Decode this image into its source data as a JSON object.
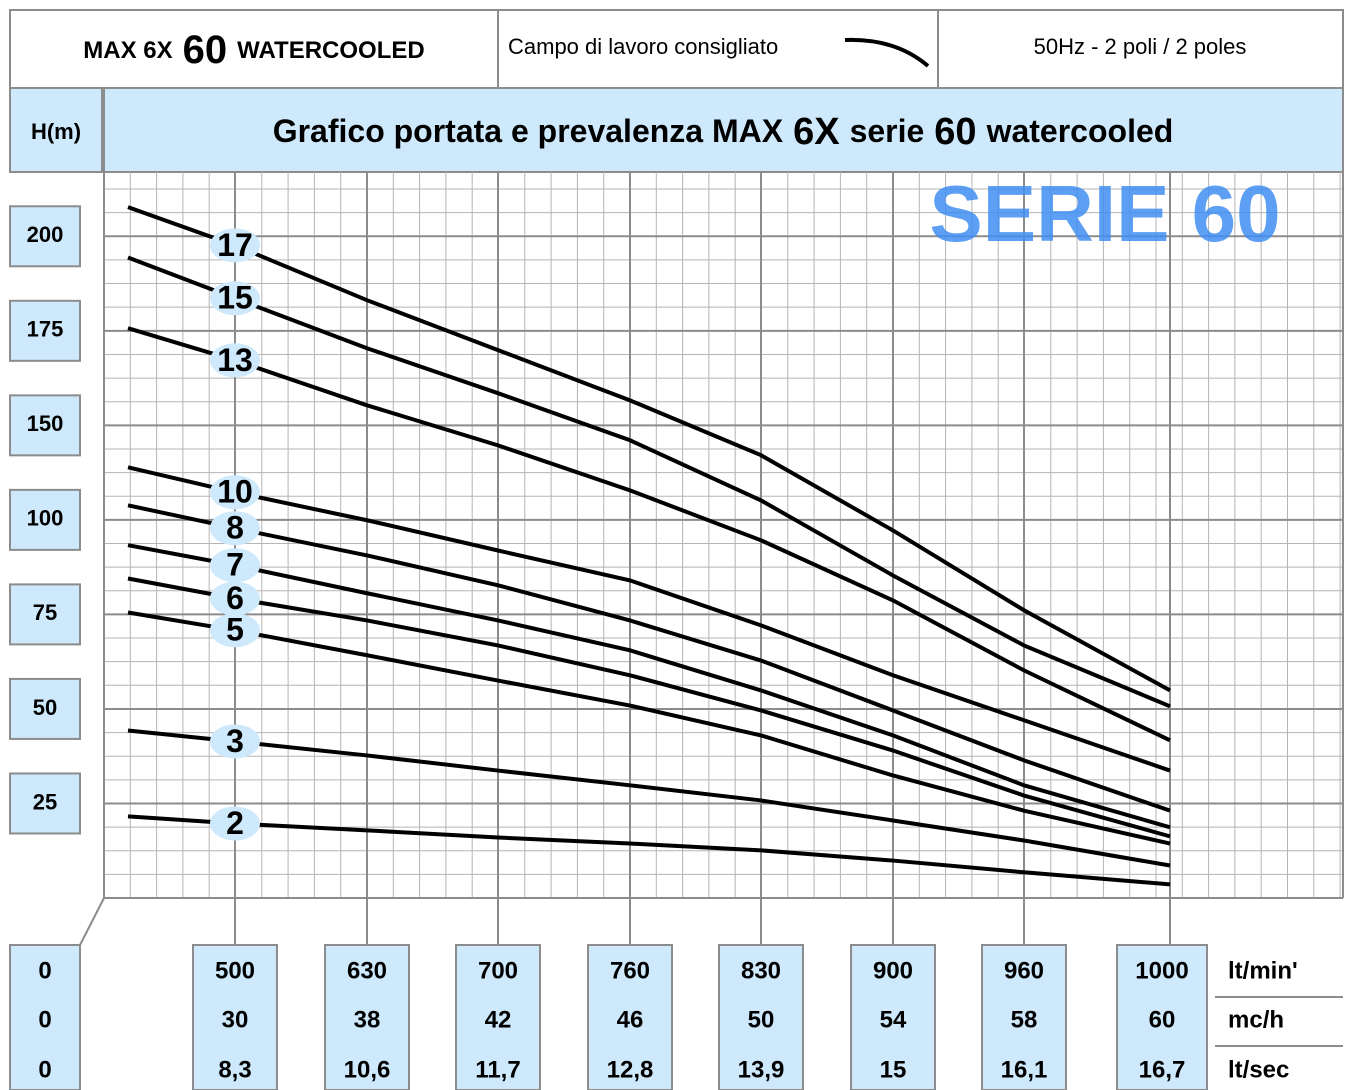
{
  "header": {
    "model": [
      "MAX 6X",
      "60",
      "WATERCOOLED"
    ],
    "legend": "Campo di lavoro consigliato",
    "frequency": "50Hz - 2 poli / 2 poles"
  },
  "chart_data": {
    "type": "line",
    "title": [
      "Grafico portata e prevalenza  MAX",
      "6X",
      "serie",
      "60",
      "watercooled"
    ],
    "y_label": "H(m)",
    "watermark": "SERIE 60",
    "x_label": "lt/min'",
    "categories": [
      "0",
      "500",
      "630",
      "700",
      "760",
      "830",
      "900",
      "960",
      "1000"
    ],
    "extra_x_rows": [
      {
        "label": "mc/h",
        "categories": [
          "0",
          "30",
          "38",
          "42",
          "46",
          "50",
          "54",
          "58",
          "60"
        ]
      },
      {
        "label": "lt/sec",
        "categories": [
          "0",
          "8,3",
          "10,6",
          "11,7",
          "12,8",
          "13,9",
          "15",
          "16,1",
          "16,7"
        ]
      }
    ],
    "ylim": [
      0,
      217
    ],
    "yticks": [
      25,
      50,
      75,
      100,
      150,
      175,
      200
    ],
    "grid": true,
    "series": [
      {
        "name": "17",
        "color": "#000000",
        "values": [
          207.7,
          197.6,
          183.1,
          169.9,
          156.6,
          134.2,
          97.2,
          76.1,
          54.9
        ]
      },
      {
        "name": "15",
        "color": "#000000",
        "values": [
          194.4,
          183.6,
          170.4,
          158.5,
          142.1,
          110.3,
          85.3,
          66.8,
          50.7
        ]
      },
      {
        "name": "13",
        "color": "#000000",
        "values": [
          175.7,
          167.2,
          155.3,
          139.4,
          115.6,
          94.6,
          78.7,
          60.2,
          41.7
        ]
      },
      {
        "name": "10",
        "color": "#000000",
        "values": [
          127.8,
          114.6,
          99.9,
          91.9,
          84.0,
          72.1,
          58.9,
          47.0,
          33.7
        ]
      },
      {
        "name": "8",
        "color": "#000000",
        "values": [
          107.7,
          97.8,
          90.6,
          82.7,
          73.4,
          62.8,
          49.6,
          36.4,
          23.1
        ]
      },
      {
        "name": "7",
        "color": "#000000",
        "values": [
          93.3,
          88.0,
          80.6,
          73.4,
          65.5,
          54.9,
          43.0,
          29.8,
          18.7
        ]
      },
      {
        "name": "6",
        "color": "#000000",
        "values": [
          84.5,
          79.2,
          73.4,
          66.8,
          58.9,
          49.6,
          39.0,
          27.1,
          16.3
        ]
      },
      {
        "name": "5",
        "color": "#000000",
        "values": [
          75.5,
          70.8,
          64.2,
          57.5,
          50.9,
          43.0,
          32.4,
          23.1,
          14.4
        ]
      },
      {
        "name": "3",
        "color": "#000000",
        "values": [
          44.3,
          41.4,
          37.7,
          33.7,
          29.8,
          25.8,
          20.5,
          15.2,
          8.6
        ]
      },
      {
        "name": "2",
        "color": "#000000",
        "values": [
          21.6,
          19.7,
          17.9,
          16.0,
          14.4,
          12.6,
          9.9,
          6.8,
          3.6
        ]
      }
    ]
  }
}
